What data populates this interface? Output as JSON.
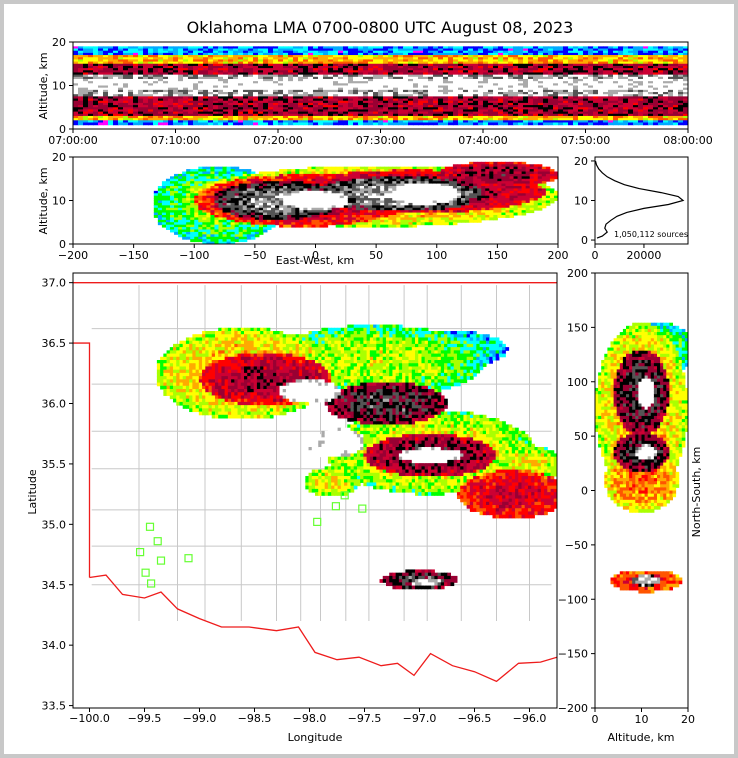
{
  "title": "Oklahoma LMA 0700-0800 UTC August 08, 2023",
  "chart_data": [
    {
      "panel": "altitude-vs-time",
      "type": "heatmap",
      "ylabel": "Altitude, km",
      "xlim": [
        "07:00:00",
        "08:00:00"
      ],
      "ylim": [
        0,
        20
      ],
      "xticks": [
        "07:00:00",
        "07:10:00",
        "07:20:00",
        "07:30:00",
        "07:40:00",
        "07:50:00",
        "08:00:00"
      ],
      "yticks": [
        "0",
        "10",
        "20"
      ],
      "bands": [
        {
          "z": [
            1,
            19
          ],
          "level": 0.15
        },
        {
          "z": [
            2,
            17
          ],
          "level": 0.45
        },
        {
          "z": [
            3,
            15
          ],
          "level": 0.7
        },
        {
          "z": [
            7.5,
            12.5
          ],
          "level": 0.92
        },
        {
          "z": [
            9,
            11.5
          ],
          "level": 0.99
        }
      ]
    },
    {
      "panel": "altitude-vs-east-west",
      "type": "heatmap",
      "xlabel": "East-West, km",
      "ylabel": "Altitude, km",
      "xlim": [
        -200,
        200
      ],
      "ylim": [
        0,
        20
      ],
      "xticks": [
        "−200",
        "−150",
        "−100",
        "−50",
        "0",
        "50",
        "100",
        "150",
        "200"
      ],
      "yticks": [
        "0",
        "10",
        "20"
      ],
      "blobs": [
        {
          "x": -80,
          "z": 9,
          "rx": 55,
          "rz": 9,
          "level": 0.2
        },
        {
          "x": 50,
          "z": 11,
          "rx": 150,
          "rz": 7,
          "level": 0.35
        },
        {
          "x": -10,
          "z": 10,
          "rx": 90,
          "rz": 6,
          "level": 0.55
        },
        {
          "x": 80,
          "z": 12,
          "rx": 110,
          "rz": 5,
          "level": 0.6
        },
        {
          "x": -30,
          "z": 10,
          "rx": 55,
          "rz": 4.5,
          "level": 0.75
        },
        {
          "x": 70,
          "z": 11.5,
          "rx": 70,
          "rz": 4,
          "level": 0.78
        },
        {
          "x": 0,
          "z": 10,
          "rx": 28,
          "rz": 2.2,
          "level": 0.95
        },
        {
          "x": 90,
          "z": 11.5,
          "rx": 30,
          "rz": 2.5,
          "level": 0.95
        },
        {
          "x": 150,
          "z": 16,
          "rx": 50,
          "rz": 3,
          "level": 0.6
        }
      ]
    },
    {
      "panel": "altitude-histogram",
      "type": "line",
      "xlim": [
        0,
        38000
      ],
      "ylim": [
        -1,
        21
      ],
      "xticks": [
        "0",
        "20000"
      ],
      "yticks": [
        "0",
        "10",
        "20"
      ],
      "profile": [
        [
          0.5,
          800
        ],
        [
          1,
          3000
        ],
        [
          2,
          5000
        ],
        [
          3,
          4000
        ],
        [
          4,
          4500
        ],
        [
          5,
          6500
        ],
        [
          6,
          9000
        ],
        [
          7,
          13000
        ],
        [
          8,
          20000
        ],
        [
          9,
          30000
        ],
        [
          10,
          36000
        ],
        [
          11,
          34000
        ],
        [
          12,
          27000
        ],
        [
          13,
          18000
        ],
        [
          14,
          12000
        ],
        [
          15,
          8000
        ],
        [
          16,
          5000
        ],
        [
          17,
          3000
        ],
        [
          18,
          1500
        ],
        [
          19,
          600
        ],
        [
          20,
          200
        ]
      ],
      "annotation": "1,050,112 sources"
    },
    {
      "panel": "plan-view",
      "type": "scatter",
      "xlabel": "Longitude",
      "ylabel": "Latitude",
      "xlim": [
        -100.15,
        -95.75
      ],
      "ylim": [
        33.48,
        37.08
      ],
      "xticks": [
        "−100.0",
        "−99.5",
        "−99.0",
        "−98.5",
        "−98.0",
        "−97.5",
        "−97.0",
        "−96.5",
        "−96.0"
      ],
      "yticks": [
        "33.5",
        "34.0",
        "34.5",
        "35.0",
        "35.5",
        "36.0",
        "36.5",
        "37.0"
      ],
      "stations": [
        [
          -99.45,
          34.98
        ],
        [
          -99.38,
          34.86
        ],
        [
          -99.54,
          34.77
        ],
        [
          -99.35,
          34.7
        ],
        [
          -99.1,
          34.72
        ],
        [
          -99.49,
          34.6
        ],
        [
          -99.44,
          34.51
        ],
        [
          -97.93,
          35.02
        ],
        [
          -97.76,
          35.15
        ],
        [
          -97.68,
          35.24
        ],
        [
          -97.52,
          35.13
        ]
      ],
      "blobs": [
        {
          "lon": -98.6,
          "lat": 36.25,
          "rx": 0.8,
          "ry": 0.38,
          "level": 0.35
        },
        {
          "lon": -97.4,
          "lat": 36.35,
          "rx": 1.0,
          "ry": 0.3,
          "level": 0.25
        },
        {
          "lon": -96.7,
          "lat": 36.45,
          "rx": 0.5,
          "ry": 0.15,
          "level": 0.15
        },
        {
          "lon": -98.4,
          "lat": 36.2,
          "rx": 0.6,
          "ry": 0.22,
          "level": 0.6
        },
        {
          "lon": -98.0,
          "lat": 36.1,
          "rx": 0.28,
          "ry": 0.1,
          "level": 0.95
        },
        {
          "lon": -97.3,
          "lat": 36.0,
          "rx": 0.55,
          "ry": 0.18,
          "level": 0.7
        },
        {
          "lon": -96.9,
          "lat": 35.6,
          "rx": 0.95,
          "ry": 0.35,
          "level": 0.3
        },
        {
          "lon": -96.9,
          "lat": 35.57,
          "rx": 0.6,
          "ry": 0.18,
          "level": 0.65
        },
        {
          "lon": -96.9,
          "lat": 35.57,
          "rx": 0.3,
          "ry": 0.06,
          "level": 0.97
        },
        {
          "lon": -97.72,
          "lat": 35.68,
          "rx": 0.22,
          "ry": 0.12,
          "level": 0.95
        },
        {
          "lon": -97.85,
          "lat": 35.6,
          "rx": 0.2,
          "ry": 0.05,
          "level": 0.96
        },
        {
          "lon": -96.15,
          "lat": 35.25,
          "rx": 0.5,
          "ry": 0.2,
          "level": 0.55
        },
        {
          "lon": -96.0,
          "lat": 35.5,
          "rx": 0.3,
          "ry": 0.15,
          "level": 0.3
        },
        {
          "lon": -97.0,
          "lat": 34.54,
          "rx": 0.35,
          "ry": 0.08,
          "level": 0.7
        },
        {
          "lon": -96.95,
          "lat": 34.52,
          "rx": 0.15,
          "ry": 0.03,
          "level": 0.9
        },
        {
          "lon": -97.8,
          "lat": 35.35,
          "rx": 0.25,
          "ry": 0.12,
          "level": 0.3
        }
      ]
    },
    {
      "panel": "north-south-vs-altitude",
      "type": "heatmap",
      "xlabel": "Altitude, km",
      "ylabel": "North-South, km",
      "xlim": [
        0,
        20
      ],
      "ylim": [
        -200,
        200
      ],
      "xticks": [
        "0",
        "10",
        "20"
      ],
      "yticks": [
        "−200",
        "−150",
        "−100",
        "−50",
        "0",
        "50",
        "100",
        "150",
        "200"
      ],
      "blobs": [
        {
          "z": 10,
          "y": 75,
          "rz": 10,
          "ry": 80,
          "level": 0.35
        },
        {
          "z": 10,
          "y": 90,
          "rz": 6,
          "ry": 40,
          "level": 0.7
        },
        {
          "z": 11,
          "y": 90,
          "rz": 2,
          "ry": 15,
          "level": 0.96
        },
        {
          "z": 10,
          "y": 35,
          "rz": 6,
          "ry": 18,
          "level": 0.7
        },
        {
          "z": 11,
          "y": 35,
          "rz": 2.2,
          "ry": 7,
          "level": 0.96
        },
        {
          "z": 10,
          "y": 10,
          "rz": 8,
          "ry": 30,
          "level": 0.4
        },
        {
          "z": 11,
          "y": -83,
          "rz": 8,
          "ry": 10,
          "level": 0.5
        },
        {
          "z": 11,
          "y": -83,
          "rz": 3,
          "ry": 5,
          "level": 0.85
        },
        {
          "z": 14,
          "y": 130,
          "rz": 7,
          "ry": 25,
          "level": 0.2
        }
      ]
    }
  ]
}
